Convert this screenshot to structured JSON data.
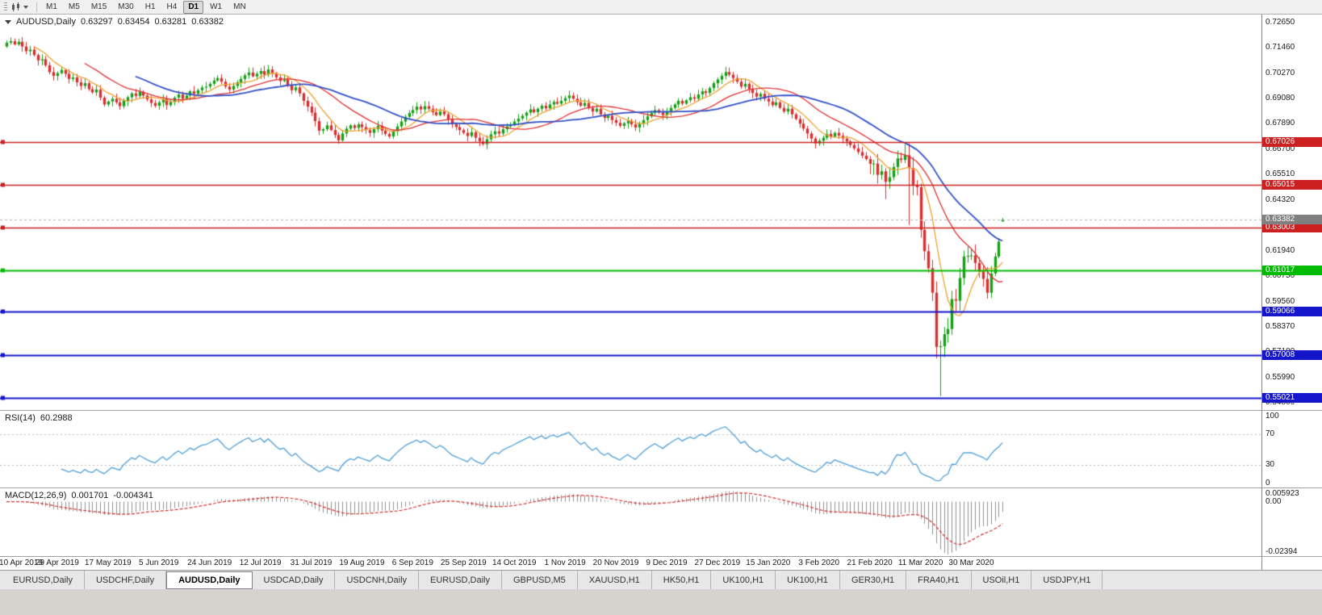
{
  "toolbar": {
    "timeframes": [
      "M1",
      "M5",
      "M15",
      "M30",
      "H1",
      "H4",
      "D1",
      "W1",
      "MN"
    ],
    "active_timeframe": "D1"
  },
  "chart": {
    "title": "AUDUSD,Daily",
    "ohlc": {
      "open": "0.63297",
      "high": "0.63454",
      "low": "0.63281",
      "close": "0.63382"
    },
    "current_price": "0.63382",
    "current_price_badge_color": "#808080",
    "axis": {
      "price_labels": [
        "0.72650",
        "0.71460",
        "0.70270",
        "0.69080",
        "0.67890",
        "0.66700",
        "0.65510",
        "0.64320",
        "0.63130",
        "0.61940",
        "0.60750",
        "0.59560",
        "0.58370",
        "0.57180",
        "0.55990",
        "0.54800"
      ],
      "price_max": 0.73,
      "price_min": 0.5445
    },
    "lines": [
      {
        "label": "0.67026",
        "price": 0.67026,
        "color": "#cc2020",
        "width": 1.6
      },
      {
        "label": "0.65015",
        "price": 0.65015,
        "color": "#cc2020",
        "width": 1.6
      },
      {
        "label": "0.63003",
        "price": 0.63003,
        "color": "#cc2020",
        "width": 1.6
      },
      {
        "label": "0.61017",
        "price": 0.61017,
        "color": "#00bb00",
        "width": 2
      },
      {
        "label": "0.59066",
        "price": 0.59066,
        "color": "#1515cc",
        "width": 2
      },
      {
        "label": "0.57008",
        "price": 0.57008,
        "color": "#1515cc",
        "width": 2
      },
      {
        "label": "0.55021",
        "price": 0.55021,
        "color": "#1515cc",
        "width": 2
      }
    ],
    "date_labels": [
      "10 Apr 2019",
      "29 Apr 2019",
      "17 May 2019",
      "5 Jun 2019",
      "24 Jun 2019",
      "12 Jul 2019",
      "31 Jul 2019",
      "19 Aug 2019",
      "6 Sep 2019",
      "25 Sep 2019",
      "14 Oct 2019",
      "1 Nov 2019",
      "20 Nov 2019",
      "9 Dec 2019",
      "27 Dec 2019",
      "15 Jan 2020",
      "3 Feb 2020",
      "21 Feb 2020",
      "11 Mar 2020",
      "30 Mar 2020"
    ],
    "bars_per_label": 13
  },
  "chart_data": {
    "type": "candlestick",
    "symbol": "AUDUSD",
    "timeframe": "Daily",
    "up_color": "#16a016",
    "down_color": "#d63030",
    "first_open": 0.715,
    "closes": [
      0.7168,
      0.7175,
      0.716,
      0.7172,
      0.715,
      0.7128,
      0.7135,
      0.711,
      0.7085,
      0.709,
      0.7062,
      0.703,
      0.7012,
      0.7025,
      0.704,
      0.7022,
      0.6998,
      0.7005,
      0.6982,
      0.6965,
      0.6978,
      0.695,
      0.6935,
      0.6948,
      0.691,
      0.6878,
      0.6892,
      0.6905,
      0.6888,
      0.687,
      0.6895,
      0.6912,
      0.693,
      0.6918,
      0.6938,
      0.692,
      0.6902,
      0.6885,
      0.6872,
      0.6888,
      0.6902,
      0.6875,
      0.689,
      0.691,
      0.6925,
      0.6905,
      0.692,
      0.694,
      0.6928,
      0.6945,
      0.6958,
      0.6962,
      0.6975,
      0.699,
      0.7002,
      0.6985,
      0.6962,
      0.6948,
      0.6965,
      0.6982,
      0.6998,
      0.7015,
      0.7028,
      0.701,
      0.7022,
      0.7035,
      0.7018,
      0.7042,
      0.7025,
      0.7005,
      0.6988,
      0.6995,
      0.697,
      0.6945,
      0.6958,
      0.693,
      0.6895,
      0.6868,
      0.684,
      0.68,
      0.6755,
      0.6762,
      0.678,
      0.6758,
      0.6735,
      0.671,
      0.6742,
      0.6765,
      0.678,
      0.6768,
      0.6785,
      0.6772,
      0.6758,
      0.6745,
      0.6762,
      0.6778,
      0.6755,
      0.674,
      0.6728,
      0.6752,
      0.6775,
      0.6798,
      0.682,
      0.6838,
      0.6852,
      0.6868,
      0.6855,
      0.687,
      0.6858,
      0.6842,
      0.6828,
      0.6845,
      0.6832,
      0.6808,
      0.6785,
      0.6772,
      0.6758,
      0.6745,
      0.673,
      0.6748,
      0.6722,
      0.6705,
      0.6692,
      0.6715,
      0.6738,
      0.6752,
      0.6742,
      0.6762,
      0.6775,
      0.6785,
      0.6798,
      0.6812,
      0.6825,
      0.684,
      0.6855,
      0.6842,
      0.6858,
      0.6872,
      0.686,
      0.6878,
      0.689,
      0.6882,
      0.6895,
      0.6908,
      0.692,
      0.6905,
      0.6888,
      0.6872,
      0.6885,
      0.6862,
      0.6845,
      0.6858,
      0.6832,
      0.6815,
      0.6825,
      0.6805,
      0.6792,
      0.6778,
      0.679,
      0.6802,
      0.6785,
      0.677,
      0.6788,
      0.6805,
      0.6822,
      0.6838,
      0.6852,
      0.684,
      0.6828,
      0.6845,
      0.6862,
      0.6878,
      0.6895,
      0.6882,
      0.6898,
      0.6912,
      0.6905,
      0.6925,
      0.694,
      0.6932,
      0.6955,
      0.6978,
      0.6995,
      0.7012,
      0.703,
      0.7018,
      0.7002,
      0.6985,
      0.6962,
      0.6975,
      0.695,
      0.6932,
      0.6915,
      0.6928,
      0.6905,
      0.6892,
      0.6875,
      0.6888,
      0.6862,
      0.6845,
      0.6858,
      0.6832,
      0.681,
      0.6788,
      0.6765,
      0.6742,
      0.6718,
      0.6695,
      0.6708,
      0.6722,
      0.674,
      0.6728,
      0.6745,
      0.6732,
      0.6718,
      0.6705,
      0.6688,
      0.6672,
      0.6655,
      0.6638,
      0.6622,
      0.66,
      0.6601,
      0.6548,
      0.6565,
      0.6515,
      0.6537,
      0.6585,
      0.6625,
      0.6618,
      0.664,
      0.658,
      0.65,
      0.649,
      0.629,
      0.619,
      0.611,
      0.5995,
      0.5741,
      0.5744,
      0.5801,
      0.5825,
      0.5965,
      0.5958,
      0.6064,
      0.6165,
      0.6168,
      0.617,
      0.6135,
      0.6095,
      0.606,
      0.5995,
      0.6085,
      0.6165,
      0.6235,
      0.6338
    ],
    "low_overrides": {
      "225": 0.6434,
      "231": 0.6313,
      "239": 0.551
    },
    "last_candle": {
      "open": 0.63297,
      "high": 0.63454,
      "low": 0.63281,
      "close": 0.63382
    },
    "moving_averages": [
      {
        "period": 8,
        "color": "#f0a030"
      },
      {
        "period": 21,
        "color": "#e03030"
      },
      {
        "period": 34,
        "color": "#3050c8"
      }
    ]
  },
  "rsi": {
    "title": "RSI(14)",
    "value": "60.2988",
    "period": 14,
    "color": "#4f9ed9",
    "levels": [
      "100",
      "70",
      "30",
      "0"
    ],
    "level_lines": [
      70,
      30
    ]
  },
  "macd": {
    "title": "MACD(12,26,9)",
    "value_main": "0.001701",
    "value_signal": "-0.004341",
    "axis_labels": [
      "0.005923",
      "0.00",
      "-0.02394"
    ],
    "max": 0.005923,
    "min": -0.02394,
    "histogram_color": "#909090",
    "signal_color": "#d23030"
  },
  "tabs": {
    "active_index": 2,
    "items": [
      {
        "label": "EURUSD,Daily"
      },
      {
        "label": "USDCHF,Daily"
      },
      {
        "label": "AUDUSD,Daily"
      },
      {
        "label": "USDCAD,Daily"
      },
      {
        "label": "USDCNH,Daily"
      },
      {
        "label": "EURUSD,Daily"
      },
      {
        "label": "GBPUSD,M5"
      },
      {
        "label": "XAUUSD,H1"
      },
      {
        "label": "HK50,H1"
      },
      {
        "label": "UK100,H1"
      },
      {
        "label": "UK100,H1"
      },
      {
        "label": "GER30,H1"
      },
      {
        "label": "FRA40,H1"
      },
      {
        "label": "USOil,H1"
      },
      {
        "label": "USDJPY,H1"
      }
    ]
  }
}
